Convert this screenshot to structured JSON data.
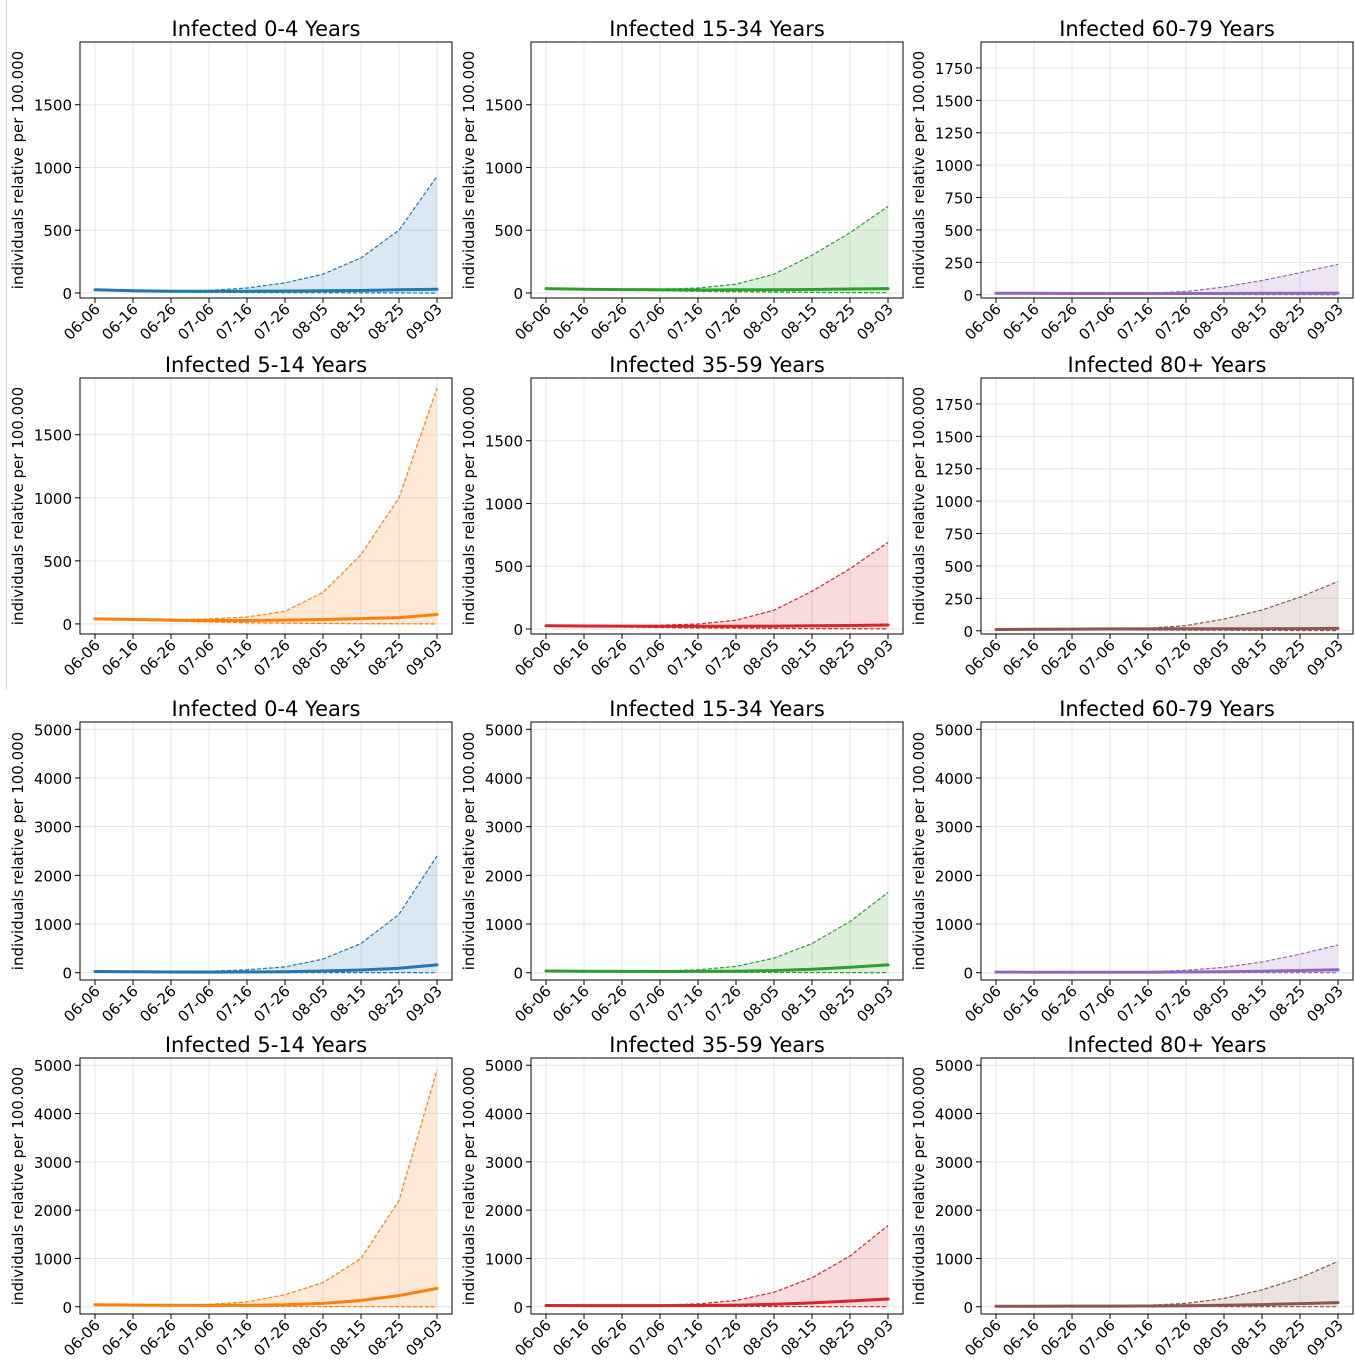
{
  "x_ticks": [
    "06-06",
    "06-16",
    "06-26",
    "07-06",
    "07-16",
    "07-26",
    "08-05",
    "08-15",
    "08-25",
    "09-03"
  ],
  "ylabel": "individuals relative per 100.000",
  "colors": {
    "0-4": "#1f77b4",
    "5-14": "#ff7f0e",
    "15-34": "#2ca02c",
    "35-59": "#d62728",
    "60-79": "#9467bd",
    "80+": "#8c564b"
  },
  "chart_data": [
    {
      "type": "line",
      "group": "0-4",
      "title": "Infected 0-4 Years",
      "xlabel": "",
      "ylabel": "individuals relative per 100.000",
      "ylim": [
        -40,
        2000
      ],
      "yticks": [
        0,
        500,
        1000,
        1500
      ],
      "grid": true,
      "x": [
        "06-06",
        "06-16",
        "06-26",
        "07-06",
        "07-16",
        "07-26",
        "08-05",
        "08-15",
        "08-25",
        "09-03"
      ],
      "series": [
        {
          "style": "solid",
          "values": [
            25,
            18,
            14,
            13,
            14,
            15,
            17,
            20,
            25,
            30
          ]
        },
        {
          "style": "dashed",
          "values": [
            25,
            18,
            15,
            20,
            40,
            80,
            150,
            280,
            500,
            930
          ]
        },
        {
          "style": "dashed",
          "values": [
            25,
            16,
            10,
            6,
            4,
            3,
            2,
            1,
            1,
            0
          ]
        }
      ]
    },
    {
      "type": "line",
      "group": "15-34",
      "title": "Infected 15-34 Years",
      "xlabel": "",
      "ylabel": "individuals relative per 100.000",
      "ylim": [
        -40,
        2000
      ],
      "yticks": [
        0,
        500,
        1000,
        1500
      ],
      "grid": true,
      "x": [
        "06-06",
        "06-16",
        "06-26",
        "07-06",
        "07-16",
        "07-26",
        "08-05",
        "08-15",
        "08-25",
        "09-03"
      ],
      "series": [
        {
          "style": "solid",
          "values": [
            35,
            30,
            27,
            25,
            24,
            25,
            26,
            28,
            32,
            35
          ]
        },
        {
          "style": "dashed",
          "values": [
            35,
            30,
            28,
            30,
            40,
            70,
            150,
            300,
            480,
            690
          ]
        },
        {
          "style": "dashed",
          "values": [
            35,
            28,
            22,
            17,
            13,
            10,
            7,
            5,
            3,
            2
          ]
        }
      ]
    },
    {
      "type": "line",
      "group": "60-79",
      "title": "Infected 60-79 Years",
      "xlabel": "",
      "ylabel": "individuals relative per 100.000",
      "ylim": [
        -25,
        1950
      ],
      "yticks": [
        0,
        250,
        500,
        750,
        1000,
        1250,
        1500,
        1750
      ],
      "grid": true,
      "x": [
        "06-06",
        "06-16",
        "06-26",
        "07-06",
        "07-16",
        "07-26",
        "08-05",
        "08-15",
        "08-25",
        "09-03"
      ],
      "series": [
        {
          "style": "solid",
          "values": [
            12,
            11,
            10,
            10,
            10,
            10,
            10,
            11,
            12,
            13
          ]
        },
        {
          "style": "dashed",
          "values": [
            12,
            11,
            10,
            10,
            12,
            25,
            60,
            110,
            170,
            235
          ]
        },
        {
          "style": "dashed",
          "values": [
            12,
            10,
            8,
            6,
            4,
            3,
            2,
            1,
            1,
            0
          ]
        }
      ]
    },
    {
      "type": "line",
      "group": "5-14",
      "title": "Infected 5-14 Years",
      "xlabel": "",
      "ylabel": "individuals relative per 100.000",
      "ylim": [
        -80,
        1950
      ],
      "yticks": [
        0,
        500,
        1000,
        1500
      ],
      "grid": true,
      "x": [
        "06-06",
        "06-16",
        "06-26",
        "07-06",
        "07-16",
        "07-26",
        "08-05",
        "08-15",
        "08-25",
        "09-03"
      ],
      "series": [
        {
          "style": "solid",
          "values": [
            40,
            35,
            30,
            27,
            27,
            30,
            35,
            42,
            50,
            75
          ]
        },
        {
          "style": "dashed",
          "values": [
            40,
            35,
            32,
            40,
            55,
            100,
            250,
            550,
            1000,
            1870
          ]
        },
        {
          "style": "dashed",
          "values": [
            40,
            30,
            22,
            15,
            10,
            6,
            4,
            2,
            1,
            0
          ]
        }
      ]
    },
    {
      "type": "line",
      "group": "35-59",
      "title": "Infected 35-59 Years",
      "xlabel": "",
      "ylabel": "individuals relative per 100.000",
      "ylim": [
        -40,
        2000
      ],
      "yticks": [
        0,
        500,
        1000,
        1500
      ],
      "grid": true,
      "x": [
        "06-06",
        "06-16",
        "06-26",
        "07-06",
        "07-16",
        "07-26",
        "08-05",
        "08-15",
        "08-25",
        "09-03"
      ],
      "series": [
        {
          "style": "solid",
          "values": [
            25,
            24,
            23,
            22,
            22,
            22,
            23,
            25,
            28,
            32
          ]
        },
        {
          "style": "dashed",
          "values": [
            25,
            24,
            25,
            30,
            40,
            70,
            150,
            300,
            480,
            690
          ]
        },
        {
          "style": "dashed",
          "values": [
            25,
            20,
            16,
            12,
            9,
            7,
            5,
            3,
            2,
            1
          ]
        }
      ]
    },
    {
      "type": "line",
      "group": "80+",
      "title": "Infected 80+ Years",
      "xlabel": "",
      "ylabel": "individuals relative per 100.000",
      "ylim": [
        -25,
        1950
      ],
      "yticks": [
        0,
        250,
        500,
        750,
        1000,
        1250,
        1500,
        1750
      ],
      "grid": true,
      "x": [
        "06-06",
        "06-16",
        "06-26",
        "07-06",
        "07-16",
        "07-26",
        "08-05",
        "08-15",
        "08-25",
        "09-03"
      ],
      "series": [
        {
          "style": "solid",
          "values": [
            10,
            12,
            13,
            14,
            14,
            15,
            15,
            16,
            17,
            18
          ]
        },
        {
          "style": "dashed",
          "values": [
            10,
            12,
            13,
            15,
            20,
            40,
            90,
            160,
            260,
            380
          ]
        },
        {
          "style": "dashed",
          "values": [
            10,
            10,
            9,
            8,
            6,
            5,
            4,
            3,
            2,
            1
          ]
        }
      ]
    },
    {
      "type": "line",
      "group": "0-4",
      "title": "Infected 0-4 Years",
      "xlabel": "",
      "ylabel": "individuals relative per 100.000",
      "ylim": [
        -150,
        5150
      ],
      "yticks": [
        0,
        1000,
        2000,
        3000,
        4000,
        5000
      ],
      "grid": true,
      "x": [
        "06-06",
        "06-16",
        "06-26",
        "07-06",
        "07-16",
        "07-26",
        "08-05",
        "08-15",
        "08-25",
        "09-03"
      ],
      "series": [
        {
          "style": "solid",
          "values": [
            25,
            18,
            14,
            13,
            15,
            20,
            35,
            55,
            90,
            160
          ]
        },
        {
          "style": "dashed",
          "values": [
            25,
            20,
            20,
            30,
            60,
            120,
            280,
            600,
            1200,
            2400
          ]
        },
        {
          "style": "dashed",
          "values": [
            25,
            16,
            10,
            6,
            4,
            3,
            2,
            1,
            1,
            0
          ]
        }
      ]
    },
    {
      "type": "line",
      "group": "15-34",
      "title": "Infected 15-34 Years",
      "xlabel": "",
      "ylabel": "individuals relative per 100.000",
      "ylim": [
        -150,
        5150
      ],
      "yticks": [
        0,
        1000,
        2000,
        3000,
        4000,
        5000
      ],
      "grid": true,
      "x": [
        "06-06",
        "06-16",
        "06-26",
        "07-06",
        "07-16",
        "07-26",
        "08-05",
        "08-15",
        "08-25",
        "09-03"
      ],
      "series": [
        {
          "style": "solid",
          "values": [
            35,
            30,
            27,
            25,
            26,
            30,
            45,
            70,
            110,
            160
          ]
        },
        {
          "style": "dashed",
          "values": [
            35,
            30,
            30,
            35,
            60,
            130,
            300,
            600,
            1050,
            1650
          ]
        },
        {
          "style": "dashed",
          "values": [
            35,
            28,
            22,
            17,
            13,
            10,
            7,
            5,
            3,
            2
          ]
        }
      ]
    },
    {
      "type": "line",
      "group": "60-79",
      "title": "Infected 60-79 Years",
      "xlabel": "",
      "ylabel": "individuals relative per 100.000",
      "ylim": [
        -150,
        5150
      ],
      "yticks": [
        0,
        1000,
        2000,
        3000,
        4000,
        5000
      ],
      "grid": true,
      "x": [
        "06-06",
        "06-16",
        "06-26",
        "07-06",
        "07-16",
        "07-26",
        "08-05",
        "08-15",
        "08-25",
        "09-03"
      ],
      "series": [
        {
          "style": "solid",
          "values": [
            12,
            11,
            10,
            10,
            11,
            14,
            20,
            30,
            45,
            60
          ]
        },
        {
          "style": "dashed",
          "values": [
            12,
            11,
            11,
            12,
            20,
            50,
            110,
            220,
            380,
            570
          ]
        },
        {
          "style": "dashed",
          "values": [
            12,
            10,
            8,
            6,
            4,
            3,
            2,
            1,
            1,
            0
          ]
        }
      ]
    },
    {
      "type": "line",
      "group": "5-14",
      "title": "Infected 5-14 Years",
      "xlabel": "",
      "ylabel": "individuals relative per 100.000",
      "ylim": [
        -150,
        5150
      ],
      "yticks": [
        0,
        1000,
        2000,
        3000,
        4000,
        5000
      ],
      "grid": true,
      "x": [
        "06-06",
        "06-16",
        "06-26",
        "07-06",
        "07-16",
        "07-26",
        "08-05",
        "08-15",
        "08-25",
        "09-03"
      ],
      "series": [
        {
          "style": "solid",
          "values": [
            40,
            35,
            30,
            28,
            30,
            40,
            70,
            130,
            230,
            380
          ]
        },
        {
          "style": "dashed",
          "values": [
            40,
            35,
            35,
            50,
            100,
            250,
            500,
            1000,
            2200,
            4900
          ]
        },
        {
          "style": "dashed",
          "values": [
            40,
            30,
            22,
            15,
            10,
            6,
            4,
            2,
            1,
            0
          ]
        }
      ]
    },
    {
      "type": "line",
      "group": "35-59",
      "title": "Infected 35-59 Years",
      "xlabel": "",
      "ylabel": "individuals relative per 100.000",
      "ylim": [
        -150,
        5150
      ],
      "yticks": [
        0,
        1000,
        2000,
        3000,
        4000,
        5000
      ],
      "grid": true,
      "x": [
        "06-06",
        "06-16",
        "06-26",
        "07-06",
        "07-16",
        "07-26",
        "08-05",
        "08-15",
        "08-25",
        "09-03"
      ],
      "series": [
        {
          "style": "solid",
          "values": [
            25,
            24,
            23,
            23,
            25,
            32,
            50,
            80,
            120,
            160
          ]
        },
        {
          "style": "dashed",
          "values": [
            25,
            25,
            28,
            35,
            60,
            130,
            300,
            600,
            1050,
            1680
          ]
        },
        {
          "style": "dashed",
          "values": [
            25,
            20,
            16,
            12,
            9,
            7,
            5,
            3,
            2,
            1
          ]
        }
      ]
    },
    {
      "type": "line",
      "group": "80+",
      "title": "Infected 80+ Years",
      "xlabel": "",
      "ylabel": "individuals relative per 100.000",
      "ylim": [
        -150,
        5150
      ],
      "yticks": [
        0,
        1000,
        2000,
        3000,
        4000,
        5000
      ],
      "grid": true,
      "x": [
        "06-06",
        "06-16",
        "06-26",
        "07-06",
        "07-16",
        "07-26",
        "08-05",
        "08-15",
        "08-25",
        "09-03"
      ],
      "series": [
        {
          "style": "solid",
          "values": [
            10,
            12,
            13,
            14,
            15,
            20,
            30,
            45,
            65,
            85
          ]
        },
        {
          "style": "dashed",
          "values": [
            10,
            12,
            14,
            18,
            30,
            70,
            170,
            350,
            600,
            940
          ]
        },
        {
          "style": "dashed",
          "values": [
            10,
            10,
            9,
            8,
            6,
            5,
            4,
            3,
            2,
            1
          ]
        }
      ]
    }
  ]
}
